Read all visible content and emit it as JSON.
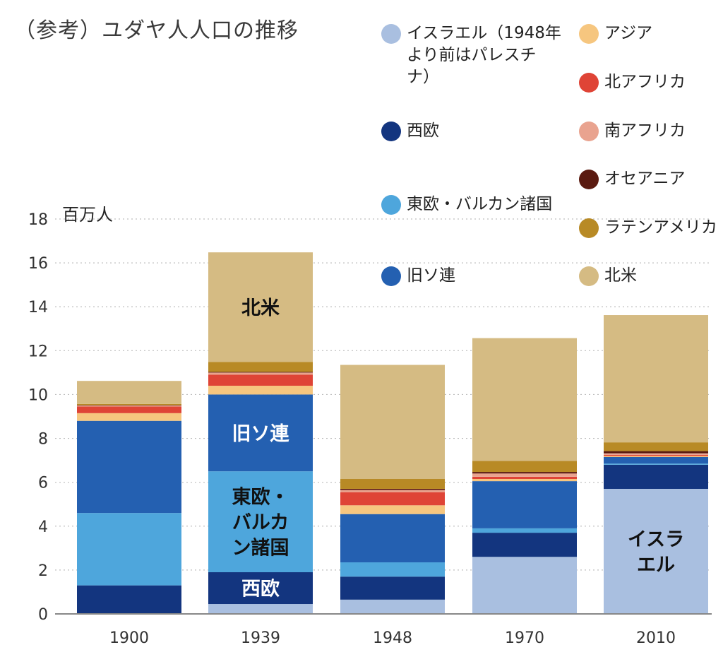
{
  "title": "（参考）ユダヤ人人口の推移",
  "unit_label": "百万人",
  "chart_data": {
    "type": "bar",
    "stacked": true,
    "categories": [
      "1900",
      "1939",
      "1948",
      "1970",
      "2010"
    ],
    "ylim": [
      0,
      18
    ],
    "yticks": [
      "0",
      "2",
      "4",
      "6",
      "8",
      "10",
      "12",
      "14",
      "16",
      "18"
    ],
    "ytick_values": [
      0,
      2,
      4,
      6,
      8,
      10,
      12,
      14,
      16,
      18
    ],
    "grid": true,
    "legend_position": "top-right",
    "series": [
      {
        "name": "イスラエル（1948年より前はパレスチナ）",
        "color": "#a9bfe0",
        "values": [
          0.0,
          0.45,
          0.65,
          2.6,
          5.7
        ]
      },
      {
        "name": "西欧",
        "color": "#13357f",
        "values": [
          1.3,
          1.45,
          1.05,
          1.1,
          1.1
        ]
      },
      {
        "name": "東欧・バルカン諸国",
        "color": "#4ea6dc",
        "values": [
          3.3,
          4.6,
          0.65,
          0.2,
          0.05
        ]
      },
      {
        "name": "旧ソ連",
        "color": "#2460b1",
        "values": [
          4.2,
          3.5,
          2.2,
          2.15,
          0.3
        ]
      },
      {
        "name": "アジア",
        "color": "#f6c67f",
        "values": [
          0.35,
          0.4,
          0.4,
          0.1,
          0.05
        ]
      },
      {
        "name": "北アフリカ",
        "color": "#df4436",
        "values": [
          0.3,
          0.5,
          0.6,
          0.1,
          0.05
        ]
      },
      {
        "name": "南アフリカ",
        "color": "#e9a38f",
        "values": [
          0.05,
          0.1,
          0.1,
          0.15,
          0.07
        ]
      },
      {
        "name": "オセアニア",
        "color": "#5a1a10",
        "values": [
          0.02,
          0.03,
          0.05,
          0.07,
          0.1
        ]
      },
      {
        "name": "ラテンアメリカ",
        "color": "#b88a25",
        "values": [
          0.05,
          0.45,
          0.45,
          0.5,
          0.4
        ]
      },
      {
        "name": "北米",
        "color": "#d5bb83",
        "values": [
          1.05,
          5.0,
          5.2,
          5.6,
          5.8
        ]
      }
    ],
    "annotations": [
      {
        "text": "北米",
        "series": "北米",
        "category": "1939"
      },
      {
        "text": "旧ソ連",
        "series": "旧ソ連",
        "category": "1939"
      },
      {
        "text": "東欧・\nバルカ\nン諸国",
        "series": "東欧・バルカン諸国",
        "category": "1939"
      },
      {
        "text": "西欧",
        "series": "西欧",
        "category": "1939"
      },
      {
        "text": "イスラ\nエル",
        "series": "イスラエル（1948年より前はパレスチナ）",
        "category": "2010"
      }
    ]
  },
  "legend": [
    {
      "name": "イスラエル（1948年\nより前はパレスチ\nナ）",
      "color": "#a9bfe0"
    },
    {
      "name": "アジア",
      "color": "#f6c67f"
    },
    {
      "name": "北アフリカ",
      "color": "#df4436"
    },
    {
      "name": "西欧",
      "color": "#13357f"
    },
    {
      "name": "南アフリカ",
      "color": "#e9a38f"
    },
    {
      "name": "オセアニア",
      "color": "#5a1a10"
    },
    {
      "name": "東欧・バルカン諸国",
      "color": "#4ea6dc"
    },
    {
      "name": "ラテンアメリカ",
      "color": "#b88a25"
    },
    {
      "name": "旧ソ連",
      "color": "#2460b1"
    },
    {
      "name": "北米",
      "color": "#d5bb83"
    }
  ]
}
